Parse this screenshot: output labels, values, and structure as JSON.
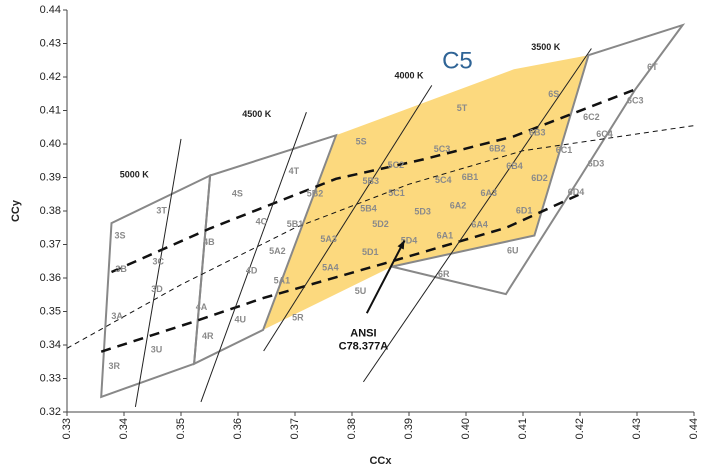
{
  "chart_data": {
    "type": "scatter",
    "title": "",
    "xlabel": "CCx",
    "ylabel": "CCy",
    "xlim": [
      0.33,
      0.44
    ],
    "ylim": [
      0.32,
      0.44
    ],
    "x_ticks": [
      "0.33",
      "0.34",
      "0.35",
      "0.36",
      "0.37",
      "0.38",
      "0.39",
      "0.40",
      "0.41",
      "0.42",
      "0.43",
      "0.44"
    ],
    "y_ticks": [
      "0.32",
      "0.33",
      "0.34",
      "0.35",
      "0.36",
      "0.37",
      "0.38",
      "0.39",
      "0.40",
      "0.41",
      "0.42",
      "0.43",
      "0.44"
    ],
    "grid": false,
    "highlight_region": {
      "label": "C5",
      "label_position": [
        0.3985,
        0.4245
      ],
      "fill": "#fcd97e",
      "polygon": [
        [
          0.3644,
          0.3445
        ],
        [
          0.3772,
          0.4026
        ],
        [
          0.4084,
          0.4223
        ],
        [
          0.4215,
          0.4265
        ],
        [
          0.412,
          0.3727
        ],
        [
          0.387,
          0.3634
        ]
      ]
    },
    "bin_outlines": [
      [
        [
          0.336,
          0.3245
        ],
        [
          0.3378,
          0.3764
        ],
        [
          0.3551,
          0.3906
        ],
        [
          0.3523,
          0.3344
        ]
      ],
      [
        [
          0.3523,
          0.3344
        ],
        [
          0.3551,
          0.3906
        ],
        [
          0.3772,
          0.4026
        ],
        [
          0.3644,
          0.3445
        ]
      ],
      [
        [
          0.387,
          0.3634
        ],
        [
          0.412,
          0.3727
        ],
        [
          0.4215,
          0.4265
        ],
        [
          0.438,
          0.4355
        ],
        [
          0.4297,
          0.4163
        ],
        [
          0.42,
          0.39
        ],
        [
          0.407,
          0.3552
        ]
      ]
    ],
    "ansi_line": [
      [
        0.3378,
        0.3618
      ],
      [
        0.3551,
        0.3748
      ],
      [
        0.3772,
        0.3896
      ],
      [
        0.3925,
        0.3954
      ],
      [
        0.4084,
        0.4023
      ],
      [
        0.4297,
        0.4163
      ]
    ],
    "ansi_line_lower": [
      [
        0.336,
        0.338
      ],
      [
        0.3523,
        0.347
      ],
      [
        0.3644,
        0.354
      ],
      [
        0.387,
        0.365
      ],
      [
        0.407,
        0.375
      ],
      [
        0.42,
        0.385
      ]
    ],
    "planckian_locus": [
      [
        0.33,
        0.339
      ],
      [
        0.35,
        0.358
      ],
      [
        0.37,
        0.375
      ],
      [
        0.39,
        0.388
      ],
      [
        0.41,
        0.398
      ],
      [
        0.44,
        0.4055
      ]
    ],
    "isotherms": [
      {
        "label": "5000 K",
        "start": [
          0.342,
          0.3215
        ],
        "end": [
          0.35,
          0.4015
        ],
        "label_at": [
          0.3418,
          0.39
        ]
      },
      {
        "label": "4500 K",
        "start": [
          0.3535,
          0.323
        ],
        "end": [
          0.372,
          0.4095
        ],
        "label_at": [
          0.3633,
          0.408
        ]
      },
      {
        "label": "4000 K",
        "start": [
          0.3645,
          0.3382
        ],
        "end": [
          0.394,
          0.4175
        ],
        "label_at": [
          0.39,
          0.4195
        ]
      },
      {
        "label": "3500 K",
        "start": [
          0.382,
          0.329
        ],
        "end": [
          0.422,
          0.4285
        ],
        "label_at": [
          0.414,
          0.428
        ]
      }
    ],
    "bin_labels": [
      {
        "text": "3S",
        "x": 0.3393,
        "y": 0.3725
      },
      {
        "text": "3T",
        "x": 0.3466,
        "y": 0.3799
      },
      {
        "text": "4S",
        "x": 0.3599,
        "y": 0.385
      },
      {
        "text": "4T",
        "x": 0.3698,
        "y": 0.3917
      },
      {
        "text": "3C",
        "x": 0.346,
        "y": 0.3648
      },
      {
        "text": "4B",
        "x": 0.3549,
        "y": 0.3705
      },
      {
        "text": "4C",
        "x": 0.3641,
        "y": 0.3767
      },
      {
        "text": "3B",
        "x": 0.3395,
        "y": 0.3625
      },
      {
        "text": "4A",
        "x": 0.3536,
        "y": 0.3512
      },
      {
        "text": "4D",
        "x": 0.3624,
        "y": 0.362
      },
      {
        "text": "3D",
        "x": 0.3458,
        "y": 0.3565
      },
      {
        "text": "3A",
        "x": 0.3388,
        "y": 0.3485
      },
      {
        "text": "4R",
        "x": 0.3547,
        "y": 0.3425
      },
      {
        "text": "4U",
        "x": 0.3604,
        "y": 0.3475
      },
      {
        "text": "3U",
        "x": 0.3457,
        "y": 0.3385
      },
      {
        "text": "3R",
        "x": 0.3383,
        "y": 0.3335
      },
      {
        "text": "5S",
        "x": 0.3816,
        "y": 0.4005
      },
      {
        "text": "5T",
        "x": 0.3993,
        "y": 0.4105
      },
      {
        "text": "6S",
        "x": 0.4154,
        "y": 0.4148
      },
      {
        "text": "6T",
        "x": 0.4327,
        "y": 0.4228
      },
      {
        "text": "5C2",
        "x": 0.3877,
        "y": 0.3935
      },
      {
        "text": "5C3",
        "x": 0.3958,
        "y": 0.3983
      },
      {
        "text": "6B2",
        "x": 0.4055,
        "y": 0.3985
      },
      {
        "text": "6B3",
        "x": 0.4125,
        "y": 0.4033
      },
      {
        "text": "6C2",
        "x": 0.422,
        "y": 0.4078
      },
      {
        "text": "6C3",
        "x": 0.4297,
        "y": 0.4128
      },
      {
        "text": "5B3",
        "x": 0.3833,
        "y": 0.3888
      },
      {
        "text": "5C1",
        "x": 0.3878,
        "y": 0.3852
      },
      {
        "text": "5C4",
        "x": 0.396,
        "y": 0.389
      },
      {
        "text": "6B1",
        "x": 0.4007,
        "y": 0.39
      },
      {
        "text": "6B4",
        "x": 0.4085,
        "y": 0.3933
      },
      {
        "text": "6C1",
        "x": 0.4172,
        "y": 0.398
      },
      {
        "text": "6C4",
        "x": 0.4243,
        "y": 0.4028
      },
      {
        "text": "5B2",
        "x": 0.3735,
        "y": 0.385
      },
      {
        "text": "5B4",
        "x": 0.3829,
        "y": 0.3805
      },
      {
        "text": "5D2",
        "x": 0.385,
        "y": 0.376
      },
      {
        "text": "5D3",
        "x": 0.3924,
        "y": 0.3796
      },
      {
        "text": "6A2",
        "x": 0.3986,
        "y": 0.3815
      },
      {
        "text": "6A3",
        "x": 0.404,
        "y": 0.3852
      },
      {
        "text": "6D2",
        "x": 0.4129,
        "y": 0.3897
      },
      {
        "text": "6D3",
        "x": 0.4228,
        "y": 0.394
      },
      {
        "text": "5B1",
        "x": 0.37,
        "y": 0.376
      },
      {
        "text": "5A3",
        "x": 0.3759,
        "y": 0.3715
      },
      {
        "text": "5A2",
        "x": 0.3669,
        "y": 0.3678
      },
      {
        "text": "5D1",
        "x": 0.3832,
        "y": 0.3676
      },
      {
        "text": "5D4",
        "x": 0.39,
        "y": 0.371
      },
      {
        "text": "6A1",
        "x": 0.3963,
        "y": 0.3725
      },
      {
        "text": "6A4",
        "x": 0.4024,
        "y": 0.3758
      },
      {
        "text": "6D1",
        "x": 0.4102,
        "y": 0.38
      },
      {
        "text": "6D4",
        "x": 0.4193,
        "y": 0.3855
      },
      {
        "text": "5A1",
        "x": 0.3677,
        "y": 0.359
      },
      {
        "text": "5A4",
        "x": 0.3762,
        "y": 0.363
      },
      {
        "text": "5U",
        "x": 0.3815,
        "y": 0.356
      },
      {
        "text": "6R",
        "x": 0.3961,
        "y": 0.361
      },
      {
        "text": "6U",
        "x": 0.4082,
        "y": 0.368
      },
      {
        "text": "5R",
        "x": 0.3705,
        "y": 0.348
      }
    ],
    "annotation": {
      "lines": [
        "ANSI",
        "C78.377A"
      ],
      "x": 0.382,
      "y": 0.3425,
      "arrow_from": [
        0.3826,
        0.3495
      ],
      "arrow_to": [
        0.3892,
        0.3712
      ]
    }
  }
}
